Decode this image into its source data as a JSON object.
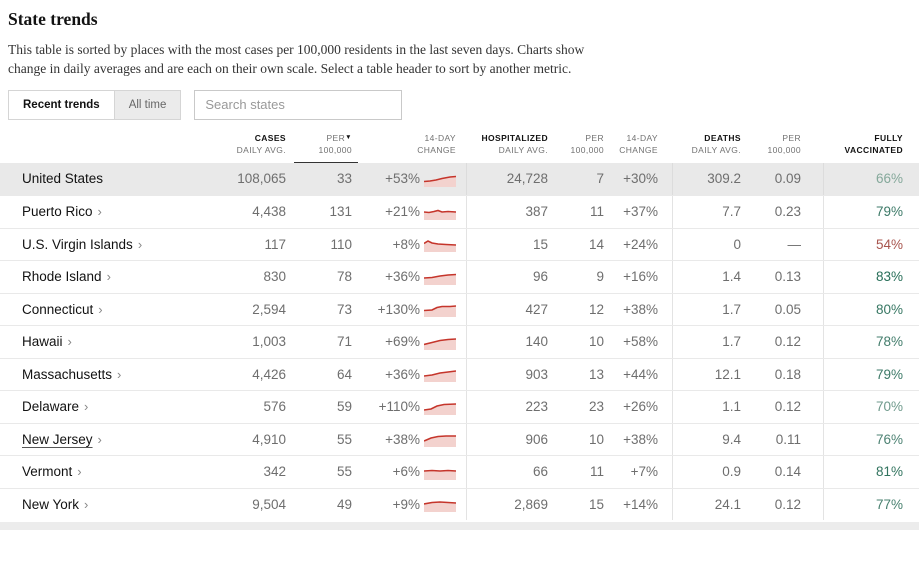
{
  "page": {
    "title": "State trends",
    "description": "This table is sorted by places with the most cases per 100,000 residents in the last seven days. Charts show change in daily averages and are each on their own scale. Select a table header to sort by another metric."
  },
  "controls": {
    "recent_label": "Recent trends",
    "alltime_label": "All time",
    "search_placeholder": "Search states"
  },
  "table": {
    "sort_icon": "▼",
    "chevron": "›",
    "sparkline_stroke": "#c5352b",
    "sparkline_fill": "#f3d2ce",
    "columns": [
      {
        "l1": "CASES",
        "l2": "DAILY AVG."
      },
      {
        "l1": "PER",
        "l2": "100,000"
      },
      {
        "l1": "14-DAY",
        "l2": "CHANGE"
      },
      {
        "l1": "HOSPITALIZED",
        "l2": "DAILY AVG."
      },
      {
        "l1": "PER",
        "l2": "100,000"
      },
      {
        "l1": "14-DAY",
        "l2": "CHANGE"
      },
      {
        "l1": "DEATHS",
        "l2": "DAILY AVG."
      },
      {
        "l1": "PER",
        "l2": "100,000"
      },
      {
        "l1": "FULLY",
        "l2": "VACCINATED"
      }
    ],
    "rows": [
      {
        "name": "United States",
        "us": true,
        "chevron": false,
        "cases": "108,065",
        "per": "33",
        "chg": "+53%",
        "spark": [
          [
            0,
            9.5
          ],
          [
            6,
            9
          ],
          [
            12,
            8
          ],
          [
            18,
            6.5
          ],
          [
            26,
            5
          ],
          [
            32,
            4.5
          ]
        ],
        "hosp": "24,728",
        "hper": "7",
        "hchg": "+30%",
        "deaths": "309.2",
        "dper": "0.09",
        "vacc": "66%",
        "vacc_color": "#84a89a"
      },
      {
        "name": "Puerto Rico",
        "us": false,
        "chevron": true,
        "cases": "4,438",
        "per": "131",
        "chg": "+21%",
        "spark": [
          [
            0,
            7
          ],
          [
            5,
            7.5
          ],
          [
            10,
            6.5
          ],
          [
            14,
            5.5
          ],
          [
            18,
            7
          ],
          [
            24,
            6.5
          ],
          [
            32,
            7
          ]
        ],
        "hosp": "387",
        "hper": "11",
        "hchg": "+37%",
        "deaths": "7.7",
        "dper": "0.23",
        "vacc": "79%",
        "vacc_color": "#3d7a68"
      },
      {
        "name": "U.S. Virgin Islands",
        "us": false,
        "chevron": true,
        "cases": "117",
        "per": "110",
        "chg": "+8%",
        "spark": [
          [
            0,
            6.5
          ],
          [
            4,
            4
          ],
          [
            8,
            6
          ],
          [
            14,
            7
          ],
          [
            22,
            7.5
          ],
          [
            32,
            8
          ]
        ],
        "hosp": "15",
        "hper": "14",
        "hchg": "+24%",
        "deaths": "0",
        "dper": "—",
        "dper_dash": true,
        "vacc": "54%",
        "vacc_color": "#a8554e"
      },
      {
        "name": "Rhode Island",
        "us": false,
        "chevron": true,
        "cases": "830",
        "per": "78",
        "chg": "+36%",
        "spark": [
          [
            0,
            8
          ],
          [
            8,
            7.5
          ],
          [
            16,
            6
          ],
          [
            24,
            5
          ],
          [
            32,
            4.5
          ]
        ],
        "hosp": "96",
        "hper": "9",
        "hchg": "+16%",
        "deaths": "1.4",
        "dper": "0.13",
        "vacc": "83%",
        "vacc_color": "#276e58"
      },
      {
        "name": "Connecticut",
        "us": false,
        "chevron": true,
        "cases": "2,594",
        "per": "73",
        "chg": "+130%",
        "spark": [
          [
            0,
            8.5
          ],
          [
            8,
            8
          ],
          [
            13,
            5.5
          ],
          [
            18,
            4.5
          ],
          [
            26,
            4.5
          ],
          [
            32,
            4
          ]
        ],
        "hosp": "427",
        "hper": "12",
        "hchg": "+38%",
        "deaths": "1.7",
        "dper": "0.05",
        "vacc": "80%",
        "vacc_color": "#377763"
      },
      {
        "name": "Hawaii",
        "us": false,
        "chevron": true,
        "cases": "1,003",
        "per": "71",
        "chg": "+69%",
        "spark": [
          [
            0,
            9.5
          ],
          [
            8,
            7.5
          ],
          [
            16,
            5.5
          ],
          [
            24,
            4.5
          ],
          [
            32,
            4
          ]
        ],
        "hosp": "140",
        "hper": "10",
        "hchg": "+58%",
        "deaths": "1.7",
        "dper": "0.12",
        "vacc": "78%",
        "vacc_color": "#437d6c"
      },
      {
        "name": "Massachusetts",
        "us": false,
        "chevron": true,
        "cases": "4,426",
        "per": "64",
        "chg": "+36%",
        "spark": [
          [
            0,
            9
          ],
          [
            8,
            8
          ],
          [
            16,
            6
          ],
          [
            24,
            5
          ],
          [
            32,
            4
          ]
        ],
        "hosp": "903",
        "hper": "13",
        "hchg": "+44%",
        "deaths": "12.1",
        "dper": "0.18",
        "vacc": "79%",
        "vacc_color": "#3d7a68"
      },
      {
        "name": "Delaware",
        "us": false,
        "chevron": true,
        "cases": "576",
        "per": "59",
        "chg": "+110%",
        "spark": [
          [
            0,
            10
          ],
          [
            7,
            9
          ],
          [
            13,
            6
          ],
          [
            20,
            4.5
          ],
          [
            32,
            4
          ]
        ],
        "hosp": "223",
        "hper": "23",
        "hchg": "+26%",
        "deaths": "1.1",
        "dper": "0.12",
        "vacc": "70%",
        "vacc_color": "#6f9a8c"
      },
      {
        "name": "New Jersey",
        "us": false,
        "chevron": true,
        "underline": true,
        "cases": "4,910",
        "per": "55",
        "chg": "+38%",
        "spark": [
          [
            0,
            9
          ],
          [
            7,
            6
          ],
          [
            14,
            4.5
          ],
          [
            22,
            4
          ],
          [
            32,
            4
          ]
        ],
        "hosp": "906",
        "hper": "10",
        "hchg": "+38%",
        "deaths": "9.4",
        "dper": "0.11",
        "vacc": "76%",
        "vacc_color": "#4d8273"
      },
      {
        "name": "Vermont",
        "us": false,
        "chevron": true,
        "cases": "342",
        "per": "55",
        "chg": "+6%",
        "spark": [
          [
            0,
            6
          ],
          [
            8,
            5.5
          ],
          [
            16,
            6
          ],
          [
            24,
            5.5
          ],
          [
            32,
            6
          ]
        ],
        "hosp": "66",
        "hper": "11",
        "hchg": "+7%",
        "deaths": "0.9",
        "dper": "0.14",
        "vacc": "81%",
        "vacc_color": "#32745f"
      },
      {
        "name": "New York",
        "us": false,
        "chevron": true,
        "cases": "9,504",
        "per": "49",
        "chg": "+9%",
        "spark": [
          [
            0,
            7
          ],
          [
            8,
            5.5
          ],
          [
            16,
            5
          ],
          [
            24,
            5.5
          ],
          [
            32,
            6
          ]
        ],
        "hosp": "2,869",
        "hper": "15",
        "hchg": "+14%",
        "deaths": "24.1",
        "dper": "0.12",
        "vacc": "77%",
        "vacc_color": "#48806f"
      }
    ]
  }
}
